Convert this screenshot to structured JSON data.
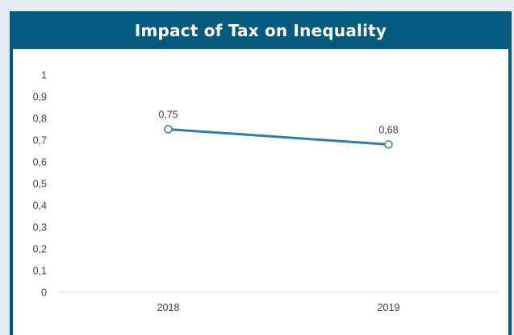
{
  "header": {
    "title": "Impact of Tax on Inequality"
  },
  "chart_data": {
    "type": "line",
    "title": "Impact of Tax on Inequality",
    "categories": [
      "2018",
      "2019"
    ],
    "series": [
      {
        "values": [
          0.75,
          0.68
        ],
        "data_labels": [
          "0,75",
          "0,68"
        ],
        "color": "#2e7fa8"
      }
    ],
    "y_ticks": [
      "0",
      "0,1",
      "0,2",
      "0,3",
      "0,4",
      "0,5",
      "0,6",
      "0,7",
      "0,8",
      "0,9",
      "1"
    ],
    "ylim": [
      0,
      1
    ],
    "xlabel": "",
    "ylabel": "",
    "grid": false,
    "legend": "none"
  },
  "colors": {
    "background": "#e4ecf2",
    "header": "#035a7e",
    "line": "#2e7fa8",
    "axis": "#d9d9d9"
  }
}
